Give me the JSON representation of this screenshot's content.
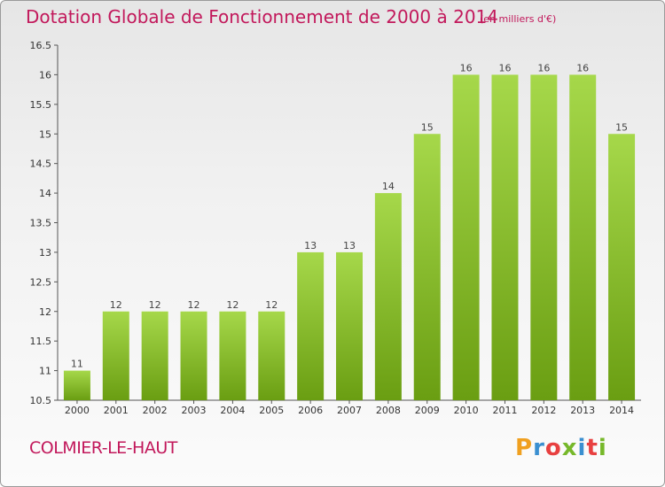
{
  "header": {
    "title": "Dotation Globale de Fonctionnement de 2000 à 2014",
    "unit": "(en milliers d'€)"
  },
  "footer": {
    "commune": "COLMIER-LE-HAUT",
    "logo": "Proxiti"
  },
  "colors": {
    "title": "#c2185b",
    "bar_top": "#a6d84a",
    "bar_bottom": "#6a9e12",
    "logo_letters": [
      "#f0a020",
      "#3a8fd0",
      "#e84040",
      "#76b82a",
      "#3a8fd0",
      "#e84040",
      "#76b82a"
    ]
  },
  "chart_data": {
    "type": "bar",
    "title": "Dotation Globale de Fonctionnement de 2000 à 2014",
    "subtitle": "(en milliers d'€)",
    "categories": [
      "2000",
      "2001",
      "2002",
      "2003",
      "2004",
      "2005",
      "2006",
      "2007",
      "2008",
      "2009",
      "2010",
      "2011",
      "2012",
      "2013",
      "2014"
    ],
    "values": [
      11,
      12,
      12,
      12,
      12,
      12,
      13,
      13,
      14,
      15,
      16,
      16,
      16,
      16,
      15
    ],
    "labels": [
      "11",
      "12",
      "12",
      "12",
      "12",
      "12",
      "13",
      "13",
      "14",
      "15",
      "16",
      "16",
      "16",
      "16",
      "15"
    ],
    "ylim": [
      10.5,
      16.5
    ],
    "yticks": [
      "10.5",
      "11",
      "11.5",
      "12",
      "12.5",
      "13",
      "13.5",
      "14",
      "14.5",
      "15",
      "15.5",
      "16",
      "16.5"
    ],
    "grid": false,
    "legend": "none"
  }
}
